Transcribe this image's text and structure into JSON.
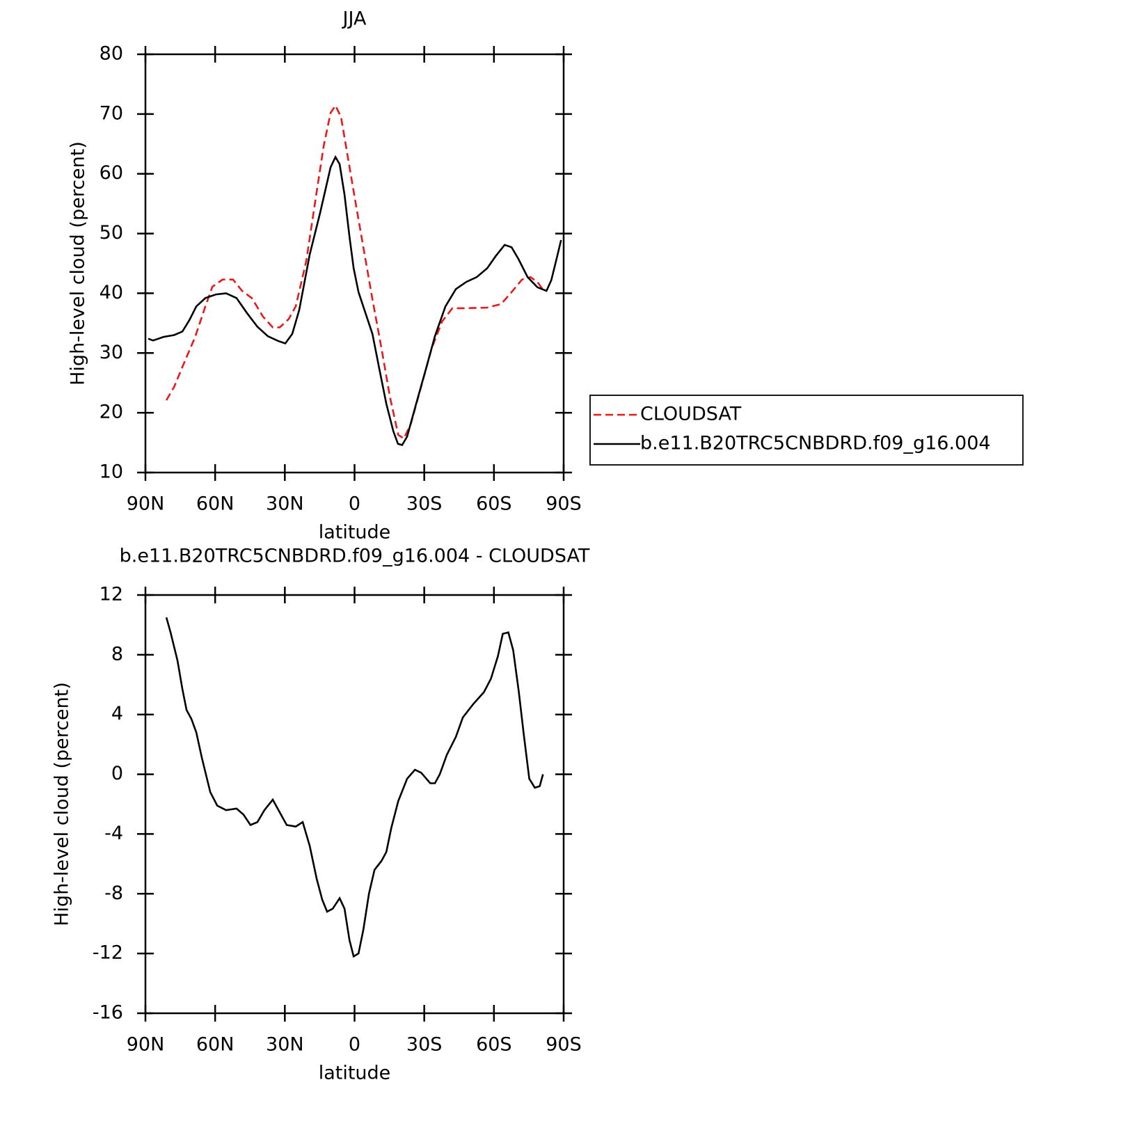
{
  "chart_data": [
    {
      "type": "line",
      "title": "JJA",
      "x_label": "latitude",
      "y_label": "High-level cloud (percent)",
      "xlim": [
        90,
        -90
      ],
      "xticks": [
        {
          "value": 90,
          "label": "90N"
        },
        {
          "value": 60,
          "label": "60N"
        },
        {
          "value": 30,
          "label": "30N"
        },
        0,
        {
          "value": -30,
          "label": "30S"
        },
        {
          "value": -60,
          "label": "60S"
        },
        {
          "value": -90,
          "label": "90S"
        }
      ],
      "ylim": [
        10,
        80
      ],
      "yticks": [
        10,
        20,
        30,
        40,
        50,
        60,
        70,
        80
      ],
      "legend": "right",
      "series": [
        {
          "name": "CLOUDSAT",
          "color": "#e8191b",
          "line_style": "dashed",
          "x": [
            81.0,
            77.7,
            73.2,
            68.7,
            64.2,
            61.2,
            56.8,
            52.3,
            48.4,
            44.2,
            39.4,
            35.2,
            32.2,
            28.3,
            25.3,
            20.8,
            16.3,
            13.3,
            10.3,
            8.2,
            5.8,
            3.4,
            -0.4,
            -4.0,
            -7.7,
            -11.6,
            -15.2,
            -18.8,
            -21.2,
            -24.2,
            -28.7,
            -33.2,
            -37.7,
            -42.1,
            -48.1,
            -57.1,
            -63.1,
            -67.6,
            -72.1,
            -75.7,
            -78.7,
            -81.1
          ],
          "values": [
            22.1,
            24.3,
            28.5,
            32.6,
            37.8,
            41.1,
            42.3,
            42.3,
            40.4,
            39.2,
            36.1,
            34.3,
            34.3,
            35.7,
            37.8,
            45.4,
            57.0,
            64.6,
            70.2,
            71.4,
            69.5,
            64.0,
            55.3,
            47.2,
            39.0,
            30.8,
            22.7,
            16.3,
            15.7,
            18.1,
            24.4,
            30.8,
            35.3,
            37.5,
            37.5,
            37.6,
            38.2,
            40.2,
            42.3,
            42.7,
            41.9,
            40.6
          ]
        },
        {
          "name": "b.e11.B20TRC5CNBDRD.f09_g16.004",
          "color": "#000000",
          "line_style": "solid",
          "x": [
            88.8,
            86.7,
            82.2,
            77.7,
            74.1,
            71.1,
            68.1,
            64.2,
            59.7,
            55.3,
            50.8,
            46.3,
            41.8,
            37.3,
            32.8,
            29.8,
            26.8,
            23.8,
            19.3,
            14.8,
            10.3,
            8.2,
            6.4,
            4.3,
            2.2,
            0.4,
            -1.7,
            -4.7,
            -7.7,
            -10.7,
            -13.7,
            -16.7,
            -18.7,
            -20.5,
            -22.6,
            -26.5,
            -30.7,
            -34.6,
            -39.1,
            -43.6,
            -48.1,
            -52.6,
            -57.1,
            -60.7,
            -64.6,
            -67.6,
            -70.6,
            -74.5,
            -78.7,
            -82.6,
            -84.7,
            -87.1,
            -88.9
          ],
          "values": [
            32.4,
            32.1,
            32.7,
            33.0,
            33.6,
            35.5,
            37.8,
            39.2,
            39.8,
            40.0,
            39.2,
            36.7,
            34.4,
            32.8,
            32.0,
            31.6,
            33.2,
            37.2,
            46.5,
            53.5,
            61.1,
            62.8,
            61.6,
            56.5,
            49.5,
            44.2,
            40.2,
            36.7,
            33.2,
            27.3,
            21.5,
            16.9,
            14.8,
            14.6,
            16.0,
            21.5,
            27.3,
            32.8,
            37.8,
            40.7,
            41.9,
            42.7,
            44.2,
            46.2,
            48.1,
            47.7,
            45.7,
            42.7,
            41.0,
            40.4,
            42.2,
            46.0,
            48.9
          ]
        }
      ]
    },
    {
      "type": "line",
      "title": "b.e11.B20TRC5CNBDRD.f09_g16.004 - CLOUDSAT",
      "x_label": "latitude",
      "y_label": "High-level cloud (percent)",
      "xlim": [
        90,
        -90
      ],
      "xticks": [
        {
          "value": 90,
          "label": "90N"
        },
        {
          "value": 60,
          "label": "60N"
        },
        {
          "value": 30,
          "label": "30N"
        },
        0,
        {
          "value": -30,
          "label": "30S"
        },
        {
          "value": -60,
          "label": "60S"
        },
        {
          "value": -90,
          "label": "90S"
        }
      ],
      "ylim": [
        -16,
        12
      ],
      "yticks": [
        -16,
        -12,
        -8,
        -4,
        0,
        4,
        8,
        12
      ],
      "series": [
        {
          "color": "#000000",
          "line_style": "solid",
          "x": [
            81.0,
            79.2,
            76.2,
            74.1,
            72.3,
            70.2,
            68.1,
            65.7,
            62.1,
            59.1,
            55.3,
            50.8,
            47.8,
            44.8,
            41.8,
            38.8,
            35.2,
            31.3,
            29.2,
            25.3,
            22.3,
            19.3,
            16.3,
            13.9,
            11.8,
            9.4,
            6.4,
            4.3,
            2.2,
            0.4,
            -1.7,
            -3.8,
            -6.2,
            -8.6,
            -11.6,
            -13.7,
            -15.8,
            -18.8,
            -22.6,
            -26.0,
            -28.7,
            -32.6,
            -34.6,
            -36.7,
            -39.7,
            -43.6,
            -46.6,
            -51.1,
            -55.7,
            -58.7,
            -61.7,
            -63.8,
            -66.2,
            -68.3,
            -70.7,
            -72.8,
            -75.2,
            -77.6,
            -79.7,
            -81.1
          ],
          "values": [
            10.5,
            9.5,
            7.6,
            5.7,
            4.3,
            3.7,
            2.8,
            1.1,
            -1.2,
            -2.1,
            -2.4,
            -2.3,
            -2.7,
            -3.4,
            -3.2,
            -2.4,
            -1.7,
            -2.8,
            -3.4,
            -3.5,
            -3.2,
            -4.8,
            -7.0,
            -8.4,
            -9.2,
            -9.0,
            -8.3,
            -9.0,
            -11.1,
            -12.2,
            -12.0,
            -10.4,
            -8.0,
            -6.4,
            -5.8,
            -5.2,
            -3.6,
            -1.8,
            -0.3,
            0.3,
            0.1,
            -0.6,
            -0.6,
            0.0,
            1.3,
            2.5,
            3.8,
            4.7,
            5.5,
            6.4,
            7.9,
            9.4,
            9.5,
            8.3,
            5.5,
            2.7,
            -0.3,
            -0.9,
            -0.8,
            0.0
          ]
        }
      ]
    }
  ]
}
